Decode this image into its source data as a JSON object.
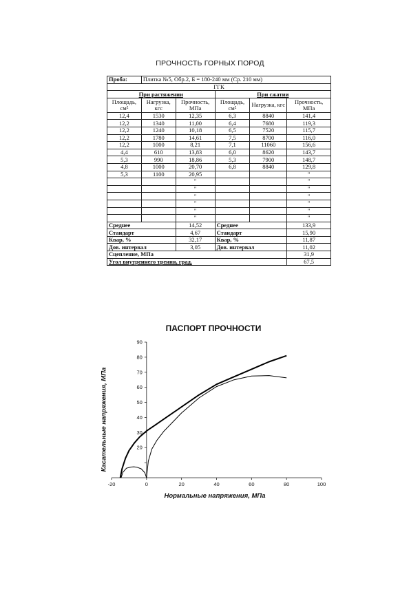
{
  "page_title": "ПРОЧНОСТЬ ГОРНЫХ ПОРОД",
  "table": {
    "sample_label": "Проба:",
    "sample_value": "Плитка №5, Обр.2, Б = 180-240 мм (Ср. 210 мм)",
    "rock_type": "ГГК",
    "tension_header": "При растяжении",
    "compression_header": "При сжатии",
    "columns": [
      "Площадь, см²",
      "Нагрузка, кгс",
      "Прочность, МПа",
      "Площадь, см²",
      "Нагрузка, кгс",
      "Прочность, МПа"
    ],
    "rows": [
      [
        "12,4",
        "1530",
        "12,35",
        "6,3",
        "8840",
        "141,4"
      ],
      [
        "12,2",
        "1340",
        "11,00",
        "6,4",
        "7680",
        "119,3"
      ],
      [
        "12,2",
        "1240",
        "10,18",
        "6,5",
        "7520",
        "115,7"
      ],
      [
        "12,2",
        "1780",
        "14,61",
        "7,5",
        "8700",
        "116,0"
      ],
      [
        "12,2",
        "1000",
        "8,21",
        "7,1",
        "11060",
        "156,6"
      ],
      [
        "4,4",
        "610",
        "13,83",
        "6,0",
        "8620",
        "143,7"
      ],
      [
        "5,3",
        "990",
        "18,86",
        "5,3",
        "7900",
        "148,7"
      ],
      [
        "4,8",
        "1000",
        "20,70",
        "6,8",
        "8840",
        "129,8"
      ],
      [
        "5,3",
        "1100",
        "20,95",
        "",
        "",
        "\""
      ],
      [
        "",
        "",
        "\"",
        "",
        "",
        "\""
      ],
      [
        "",
        "",
        "\"",
        "",
        "",
        "\""
      ],
      [
        "",
        "",
        "\"",
        "",
        "",
        "\""
      ],
      [
        "",
        "",
        "\"",
        "",
        "",
        "\""
      ],
      [
        "",
        "",
        "\"",
        "",
        "",
        "\""
      ],
      [
        "",
        "",
        "\"",
        "",
        "",
        "\""
      ]
    ],
    "stats": [
      {
        "label": "Среднее",
        "tension": "14,52",
        "compression": "133,9"
      },
      {
        "label": "Стандарт",
        "tension": "4,67",
        "compression": "15,90"
      },
      {
        "label": "Квар, %",
        "tension": "32,17",
        "compression": "11,87"
      },
      {
        "label": "Дов. интервал",
        "tension": "3,05",
        "compression": "11,02"
      }
    ],
    "cohesion_label": "Сцепление, МПа",
    "cohesion_value": "31,9",
    "friction_label": "Угол внутреннего трения, град.",
    "friction_value": "67,5"
  },
  "chart_data": {
    "type": "line",
    "title": "ПАСПОРТ ПРОЧНОСТИ",
    "xlabel": "Нормальные напряжения, МПа",
    "ylabel": "Касательные напряжения, МПа",
    "xlim": [
      -20,
      100
    ],
    "ylim": [
      0,
      90
    ],
    "x_ticks": [
      -20,
      0,
      20,
      40,
      60,
      80,
      100
    ],
    "y_ticks": [
      10,
      20,
      30,
      40,
      50,
      60,
      70,
      80,
      90
    ],
    "y_tick_labels": [
      "",
      "20",
      "30",
      "40",
      "50",
      "60",
      "70",
      "80",
      "90"
    ],
    "grid": false,
    "series": [
      {
        "role": "envelope",
        "x": [
          -15,
          -14,
          -12,
          -10,
          -7,
          -4,
          0,
          5,
          10,
          20,
          30,
          40,
          50,
          60,
          70,
          80
        ],
        "y": [
          0,
          6,
          13,
          18,
          23,
          27,
          31,
          35,
          39,
          47,
          55,
          62,
          67,
          72,
          77,
          81
        ]
      },
      {
        "role": "tension-circle",
        "x": [
          -14.52,
          -13.5,
          -11.5,
          -9,
          -7.26,
          -5.5,
          -3,
          -1,
          0
        ],
        "y": [
          0,
          3.6,
          6.3,
          7.1,
          7.26,
          7.0,
          5.9,
          3.4,
          0
        ]
      },
      {
        "role": "compression-circle",
        "x": [
          0,
          1,
          3,
          6,
          10,
          20,
          30,
          40,
          50,
          60,
          70,
          80
        ],
        "y": [
          0,
          11,
          19,
          25,
          31,
          43,
          53,
          60.5,
          65,
          67.5,
          67.8,
          66.3
        ]
      }
    ]
  }
}
